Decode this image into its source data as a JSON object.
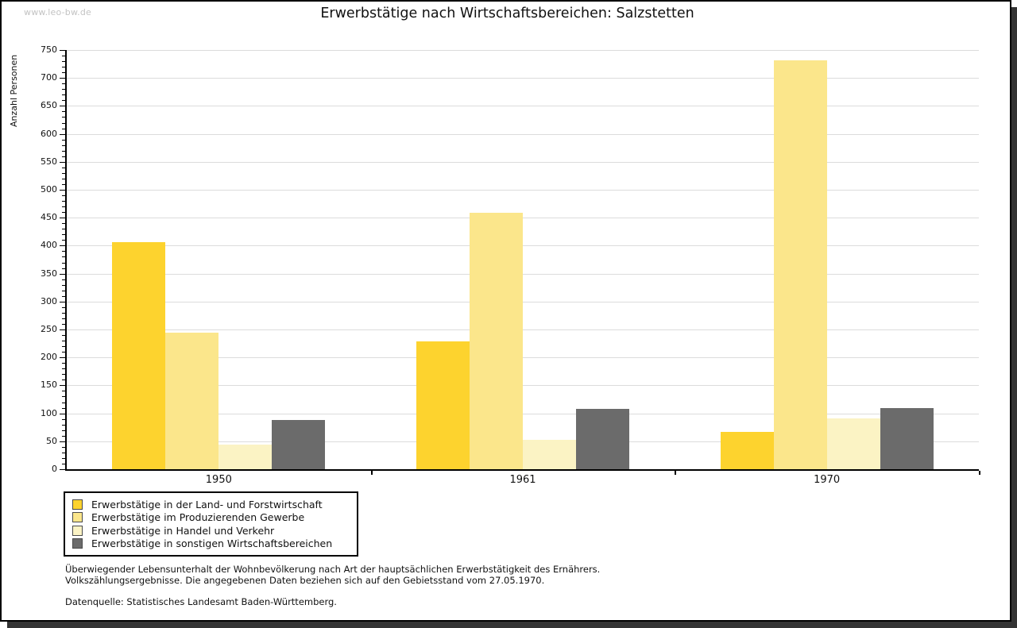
{
  "watermark": "www.leo-bw.de",
  "title": "Erwerbstätige nach Wirtschaftsbereichen: Salzstetten",
  "chart_data": {
    "type": "bar",
    "title": "Erwerbstätige nach Wirtschaftsbereichen: Salzstetten",
    "categories": [
      "1950",
      "1961",
      "1970"
    ],
    "series": [
      {
        "name": "Erwerbstätige in der Land- und Forstwirtschaft",
        "color": "#fdd32e",
        "values": [
          406,
          228,
          67
        ]
      },
      {
        "name": "Erwerbstätige im Produzierenden Gewerbe",
        "color": "#fbe68b",
        "values": [
          245,
          459,
          732
        ]
      },
      {
        "name": "Erwerbstätige in Handel und Verkehr",
        "color": "#fbf3c4",
        "values": [
          44,
          53,
          91
        ]
      },
      {
        "name": "Erwerbstätige in sonstigen Wirtschaftsbereichen",
        "color": "#6b6b6b",
        "values": [
          88,
          108,
          110
        ]
      }
    ],
    "xlabel": "",
    "ylabel": "Anzahl Personen",
    "ylim": [
      0,
      750
    ],
    "ytick_major": 50,
    "ytick_minor": 10,
    "grid": true,
    "legend_position": "bottom-left"
  },
  "footer": {
    "line1": "Überwiegender Lebensunterhalt der Wohnbevölkerung nach Art der hauptsächlichen Erwerbstätigkeit des Ernährers.",
    "line2": "Volkszählungsergebnisse. Die angegebenen Daten beziehen sich auf den Gebietsstand vom 27.05.1970.",
    "source": "Datenquelle: Statistisches Landesamt Baden-Württemberg."
  },
  "colors": {
    "grid": "#dcdcdc",
    "axis": "#000000",
    "frame_shadow": "#333333",
    "watermark": "#c3c3c3"
  }
}
